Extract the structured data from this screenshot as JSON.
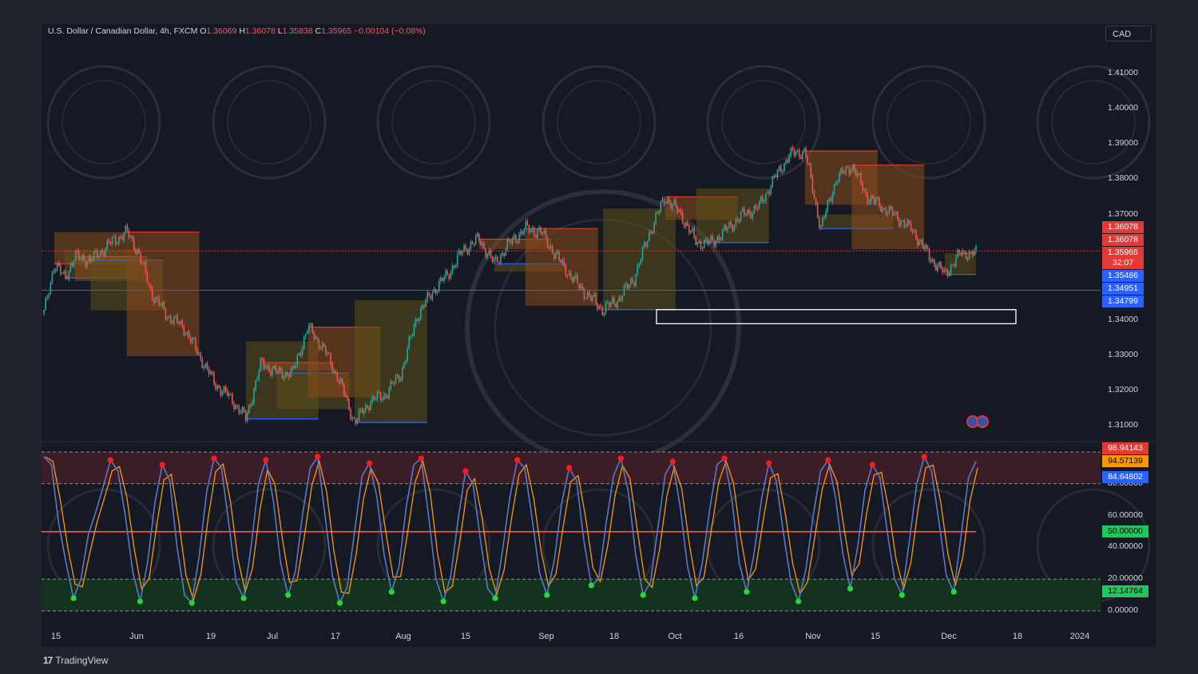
{
  "header": {
    "symbol": "U.S. Dollar / Canadian Dollar, 4h, FXCM",
    "open_label": "O",
    "open": "1.36069",
    "high_label": "H",
    "high": "1.36078",
    "low_label": "L",
    "low": "1.35838",
    "close_label": "C",
    "close": "1.35965",
    "change": "−0.00104 (−0.08%)"
  },
  "currency_button": "CAD",
  "branding": {
    "name": "TradingView",
    "logo": "17"
  },
  "colors": {
    "background": "#151923",
    "up": "#26a69a",
    "down": "#ef5350",
    "resistance": "#e53935",
    "support": "#2962ff",
    "box_fill": "#8a4a1c",
    "box_fill_support": "#5c5118",
    "k_line": "#5b77c9",
    "d_line": "#ff9800",
    "overbought_zone": "#3b1d28",
    "oversold_zone": "#14331f",
    "dot_high": "#ff1a1a",
    "dot_low": "#22d93a"
  },
  "chart_data": [
    {
      "type": "line",
      "title": "U.S. Dollar / Canadian Dollar, 4h, FXCM",
      "series_style": "candlestick",
      "x_ticks": [
        "15",
        "Jun",
        "19",
        "Jul",
        "17",
        "Aug",
        "15",
        "Sep",
        "18",
        "Oct",
        "16",
        "Nov",
        "15",
        "Dec",
        "18",
        "2024"
      ],
      "y_ticks": [
        "1.41000",
        "1.40000",
        "1.39000",
        "1.38000",
        "1.37000",
        "1.34000",
        "1.33000",
        "1.32000",
        "1.31000"
      ],
      "ylim": [
        1.3085,
        1.4195
      ],
      "price_path": [
        [
          0,
          1.342
        ],
        [
          2,
          1.356
        ],
        [
          4,
          1.352
        ],
        [
          6,
          1.358
        ],
        [
          9,
          1.357
        ],
        [
          13,
          1.362
        ],
        [
          16,
          1.365
        ],
        [
          18,
          1.36
        ],
        [
          21,
          1.347
        ],
        [
          24,
          1.341
        ],
        [
          27,
          1.338
        ],
        [
          30,
          1.33
        ],
        [
          33,
          1.322
        ],
        [
          36,
          1.318
        ],
        [
          39,
          1.312
        ],
        [
          42,
          1.328
        ],
        [
          45,
          1.325
        ],
        [
          48,
          1.325
        ],
        [
          51,
          1.338
        ],
        [
          54,
          1.332
        ],
        [
          57,
          1.323
        ],
        [
          60,
          1.311
        ],
        [
          63,
          1.317
        ],
        [
          66,
          1.319
        ],
        [
          69,
          1.325
        ],
        [
          72,
          1.341
        ],
        [
          75,
          1.348
        ],
        [
          78,
          1.353
        ],
        [
          81,
          1.36
        ],
        [
          84,
          1.363
        ],
        [
          87,
          1.356
        ],
        [
          90,
          1.362
        ],
        [
          93,
          1.366
        ],
        [
          96,
          1.365
        ],
        [
          99,
          1.358
        ],
        [
          102,
          1.352
        ],
        [
          105,
          1.347
        ],
        [
          108,
          1.343
        ],
        [
          111,
          1.346
        ],
        [
          114,
          1.352
        ],
        [
          117,
          1.365
        ],
        [
          120,
          1.375
        ],
        [
          123,
          1.37
        ],
        [
          126,
          1.362
        ],
        [
          129,
          1.362
        ],
        [
          132,
          1.366
        ],
        [
          135,
          1.37
        ],
        [
          138,
          1.372
        ],
        [
          141,
          1.38
        ],
        [
          144,
          1.387
        ],
        [
          147,
          1.388
        ],
        [
          150,
          1.366
        ],
        [
          153,
          1.38
        ],
        [
          156,
          1.384
        ],
        [
          159,
          1.375
        ],
        [
          162,
          1.372
        ],
        [
          165,
          1.369
        ],
        [
          168,
          1.365
        ],
        [
          171,
          1.358
        ],
        [
          174,
          1.353
        ],
        [
          177,
          1.359
        ],
        [
          180,
          1.359
        ]
      ],
      "horizontal_lines": [
        {
          "name": "support",
          "value": 1.3485
        },
        {
          "name": "current",
          "value": 1.35965
        }
      ],
      "price_labels": [
        {
          "text": "1.36078",
          "color": "#e53935"
        },
        {
          "text": "1.36078",
          "color": "#e53935"
        },
        {
          "text": "1.35965",
          "color": "#e53935"
        },
        {
          "text": "32:07",
          "color": "#e53935"
        },
        {
          "text": "1.35486",
          "color": "#2962ff"
        },
        {
          "text": "1.34951",
          "color": "#2962ff"
        },
        {
          "text": "1.34799",
          "color": "#2962ff"
        }
      ]
    },
    {
      "type": "line",
      "indicator": "stochastic",
      "ylim": [
        0,
        100
      ],
      "y_ticks": [
        "80.00000",
        "60.00000",
        "40.00000",
        "20.00000",
        "0.00000"
      ],
      "levels": [
        100,
        80,
        50,
        20,
        0
      ],
      "value_labels": [
        {
          "text": "98.94143",
          "color": "#e53935"
        },
        {
          "text": "94.57139",
          "color": "#ff9800"
        },
        {
          "text": "84.64802",
          "color": "#2962ff"
        },
        {
          "text": "50.00000",
          "color": "#22c55e"
        },
        {
          "text": "12.14764",
          "color": "#22c55e"
        }
      ],
      "oscillator_path": [
        97,
        92,
        55,
        30,
        8,
        20,
        48,
        62,
        78,
        95,
        88,
        60,
        25,
        6,
        30,
        68,
        92,
        82,
        40,
        10,
        5,
        35,
        75,
        96,
        90,
        55,
        18,
        8,
        40,
        80,
        95,
        70,
        30,
        10,
        25,
        62,
        90,
        97,
        60,
        22,
        5,
        15,
        50,
        85,
        93,
        72,
        35,
        12,
        28,
        66,
        92,
        96,
        60,
        20,
        6,
        22,
        58,
        88,
        80,
        45,
        14,
        8,
        38,
        72,
        95,
        90,
        58,
        24,
        10,
        32,
        68,
        90,
        82,
        44,
        16,
        20,
        55,
        85,
        96,
        75,
        35,
        10,
        18,
        52,
        86,
        94,
        66,
        28,
        8,
        30,
        64,
        92,
        96,
        70,
        30,
        12,
        36,
        70,
        93,
        82,
        48,
        18,
        6,
        26,
        60,
        88,
        95,
        72,
        36,
        14,
        40,
        76,
        92,
        84,
        50,
        20,
        10,
        44,
        80,
        97,
        88,
        56,
        22,
        12,
        48,
        84,
        94
      ]
    }
  ]
}
